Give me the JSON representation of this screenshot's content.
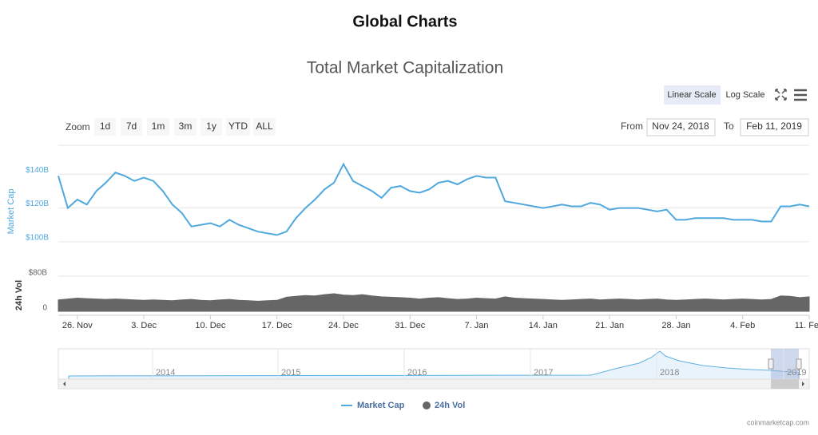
{
  "page_title": "Global Charts",
  "controls": {
    "zoom_label": "Zoom",
    "zoom_buttons": [
      "1d",
      "7d",
      "1m",
      "3m",
      "1y",
      "YTD",
      "ALL"
    ],
    "scale_buttons": [
      "Linear Scale",
      "Log Scale"
    ],
    "from_label": "From",
    "from_value": "Nov 24, 2018",
    "to_label": "To",
    "to_value": "Feb 11, 2019"
  },
  "navigator": {
    "labels": [
      "2014",
      "2015",
      "2016",
      "2017",
      "2018",
      "2019"
    ]
  },
  "credit": "coinmarketcap.com",
  "chart_data": {
    "type": "line",
    "title": "Total Market Capitalization",
    "y_label": "Market Cap",
    "y2_label": "24h Vol",
    "x": [
      "2018-11-24",
      "2018-11-25",
      "2018-11-26",
      "2018-11-27",
      "2018-11-28",
      "2018-11-29",
      "2018-11-30",
      "2018-12-01",
      "2018-12-02",
      "2018-12-03",
      "2018-12-04",
      "2018-12-05",
      "2018-12-06",
      "2018-12-07",
      "2018-12-08",
      "2018-12-09",
      "2018-12-10",
      "2018-12-11",
      "2018-12-12",
      "2018-12-13",
      "2018-12-14",
      "2018-12-15",
      "2018-12-16",
      "2018-12-17",
      "2018-12-18",
      "2018-12-19",
      "2018-12-20",
      "2018-12-21",
      "2018-12-22",
      "2018-12-23",
      "2018-12-24",
      "2018-12-25",
      "2018-12-26",
      "2018-12-27",
      "2018-12-28",
      "2018-12-29",
      "2018-12-30",
      "2018-12-31",
      "2019-01-01",
      "2019-01-02",
      "2019-01-03",
      "2019-01-04",
      "2019-01-05",
      "2019-01-06",
      "2019-01-07",
      "2019-01-08",
      "2019-01-09",
      "2019-01-10",
      "2019-01-11",
      "2019-01-12",
      "2019-01-13",
      "2019-01-14",
      "2019-01-15",
      "2019-01-16",
      "2019-01-17",
      "2019-01-18",
      "2019-01-19",
      "2019-01-20",
      "2019-01-21",
      "2019-01-22",
      "2019-01-23",
      "2019-01-24",
      "2019-01-25",
      "2019-01-26",
      "2019-01-27",
      "2019-01-28",
      "2019-01-29",
      "2019-01-30",
      "2019-01-31",
      "2019-02-01",
      "2019-02-02",
      "2019-02-03",
      "2019-02-04",
      "2019-02-05",
      "2019-02-06",
      "2019-02-07",
      "2019-02-08",
      "2019-02-09",
      "2019-02-10",
      "2019-02-11"
    ],
    "xlim": [
      "2018-11-24",
      "2019-02-11"
    ],
    "xticks": [
      {
        "value": "2018-11-26",
        "label": "26. Nov"
      },
      {
        "value": "2018-12-03",
        "label": "3. Dec"
      },
      {
        "value": "2018-12-10",
        "label": "10. Dec"
      },
      {
        "value": "2018-12-17",
        "label": "17. Dec"
      },
      {
        "value": "2018-12-24",
        "label": "24. Dec"
      },
      {
        "value": "2018-12-31",
        "label": "31. Dec"
      },
      {
        "value": "2019-01-07",
        "label": "7. Jan"
      },
      {
        "value": "2019-01-14",
        "label": "14. Jan"
      },
      {
        "value": "2019-01-21",
        "label": "21. Jan"
      },
      {
        "value": "2019-01-28",
        "label": "28. Jan"
      },
      {
        "value": "2019-02-04",
        "label": "4. Feb"
      },
      {
        "value": "2019-02-11",
        "label": "11. Feb"
      }
    ],
    "ylim": [
      90,
      160
    ],
    "yticks": [
      {
        "value": 100,
        "label": "$100B"
      },
      {
        "value": 120,
        "label": "$120B"
      },
      {
        "value": 140,
        "label": "$140B"
      }
    ],
    "y2lim": [
      0,
      80
    ],
    "y2ticks": [
      0,
      {
        "value": 80,
        "label": "$80B"
      }
    ],
    "grid": true,
    "legend": "bottom",
    "series": [
      {
        "name": "Market Cap",
        "color": "#4fa8de",
        "values": [
          139,
          120,
          125,
          122,
          130,
          135,
          141,
          139,
          136,
          138,
          136,
          130,
          122,
          117,
          109,
          110,
          111,
          109,
          113,
          110,
          108,
          106,
          105,
          104,
          106,
          114,
          120,
          125,
          131,
          135,
          146,
          136,
          133,
          130,
          126,
          132,
          133,
          130,
          129,
          131,
          135,
          136,
          134,
          137,
          139,
          138,
          138,
          124,
          123,
          122,
          121,
          120,
          121,
          122,
          121,
          121,
          123,
          122,
          119,
          120,
          120,
          120,
          119,
          118,
          119,
          113,
          113,
          114,
          114,
          114,
          114,
          113,
          113,
          113,
          112,
          112,
          121,
          121,
          122,
          121
        ]
      },
      {
        "name": "24h Vol",
        "color": "#666666",
        "axis": "y2",
        "values": [
          26,
          28,
          30,
          29,
          28,
          27,
          28,
          27,
          26,
          25,
          26,
          25,
          24,
          26,
          27,
          25,
          24,
          26,
          27,
          25,
          24,
          23,
          24,
          25,
          32,
          34,
          36,
          35,
          38,
          40,
          37,
          36,
          38,
          35,
          33,
          32,
          31,
          30,
          28,
          30,
          31,
          29,
          27,
          28,
          30,
          29,
          28,
          33,
          30,
          29,
          28,
          27,
          26,
          25,
          26,
          27,
          28,
          26,
          27,
          28,
          27,
          26,
          27,
          28,
          26,
          25,
          26,
          27,
          28,
          27,
          26,
          27,
          28,
          27,
          26,
          27,
          35,
          34,
          31,
          33
        ]
      }
    ]
  }
}
